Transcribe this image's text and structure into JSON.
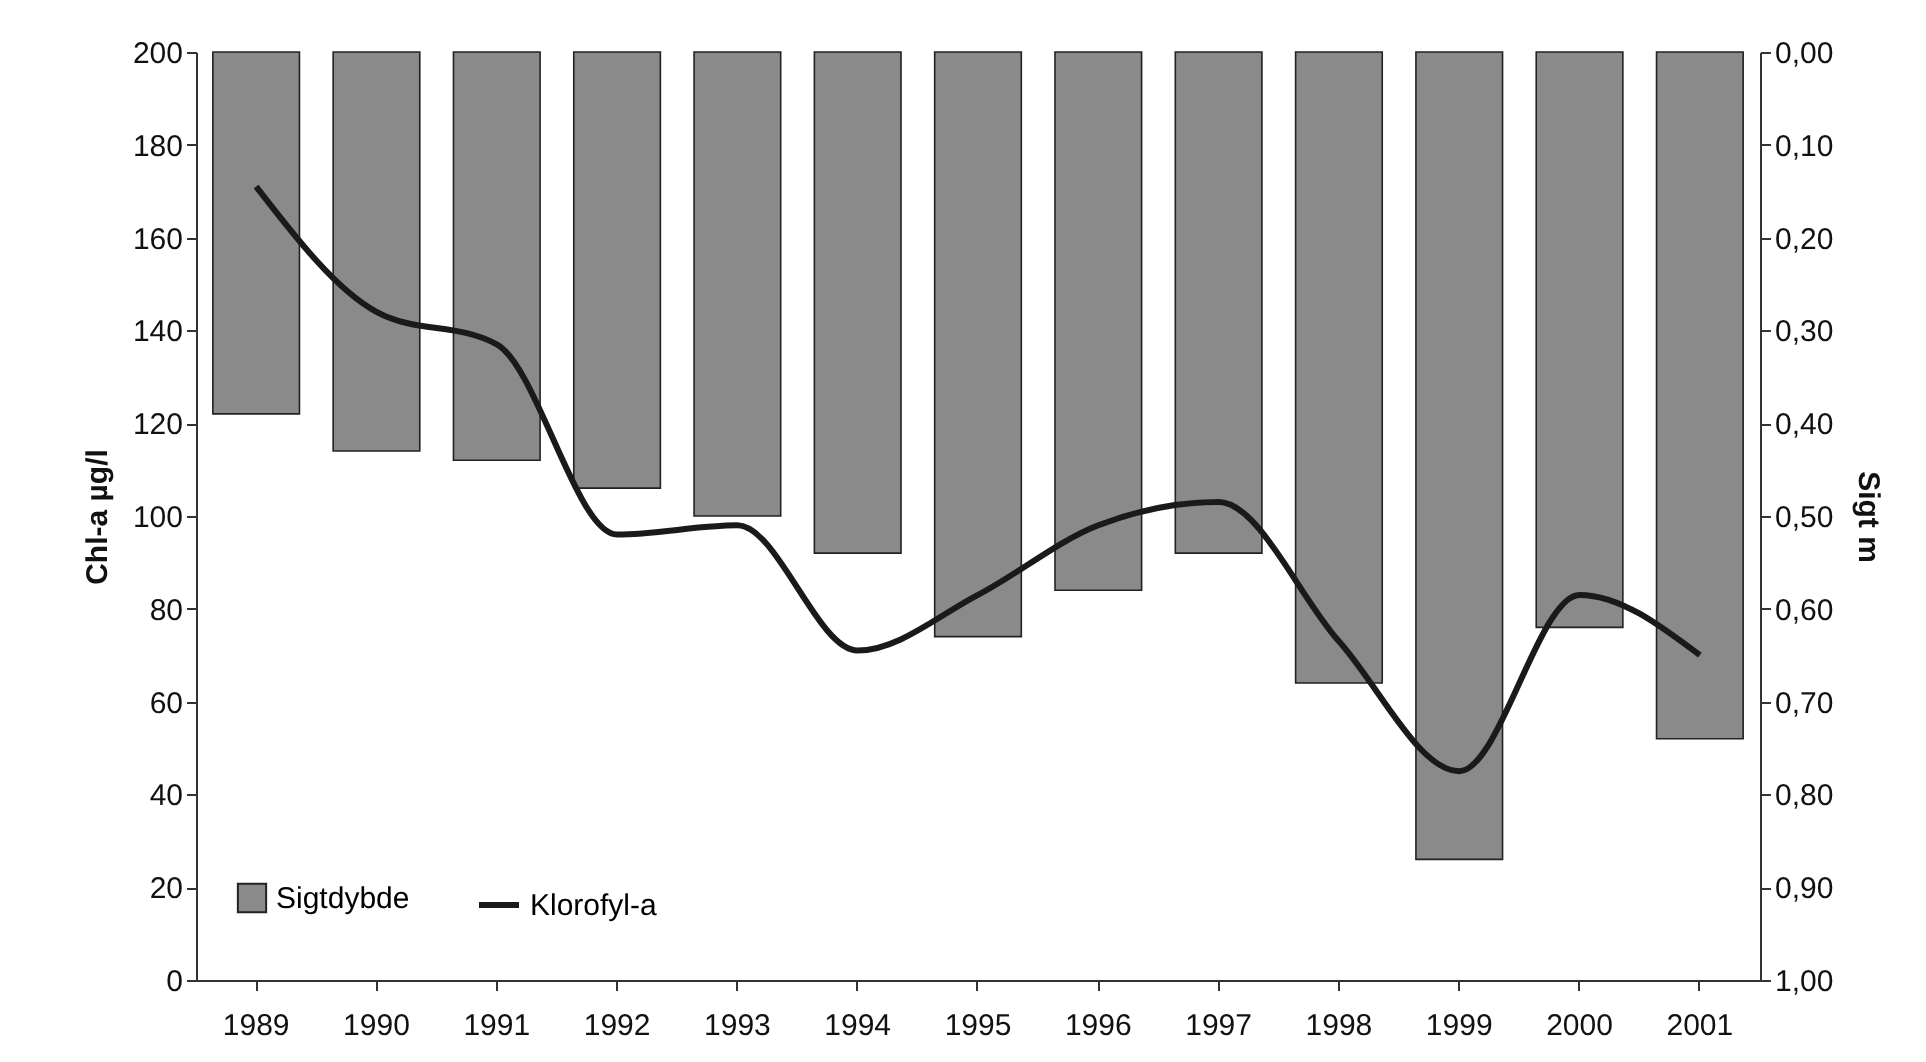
{
  "chart_data": {
    "type": "bar",
    "xlabel": null,
    "ylabel": "Chl-a µg/l",
    "y2label": "Sigt m",
    "categories": [
      "1989",
      "1990",
      "1991",
      "1992",
      "1993",
      "1994",
      "1995",
      "1996",
      "1997",
      "1998",
      "1999",
      "2000",
      "2001"
    ],
    "series": [
      {
        "name": "Sigtdybde",
        "axis": "y2",
        "color": "#8a8a8a",
        "values": [
          0.39,
          0.43,
          0.44,
          0.47,
          0.5,
          0.54,
          0.63,
          0.58,
          0.54,
          0.68,
          0.87,
          0.62,
          0.74
        ]
      },
      {
        "name": "Klorofyl-a",
        "type": "line",
        "color": "#1a1a1a",
        "values": [
          171,
          144,
          137,
          96,
          98,
          71,
          83,
          98,
          103,
          73,
          45,
          83,
          70
        ]
      }
    ],
    "ylim": [
      0,
      200
    ],
    "yticks": [
      0,
      20,
      40,
      60,
      80,
      100,
      120,
      140,
      160,
      180,
      200
    ],
    "y2lim": [
      1,
      0
    ],
    "y2ticks": [
      {
        "value": 0,
        "label": "0,00"
      },
      {
        "value": 0.1,
        "label": "0,10"
      },
      {
        "value": 0.2,
        "label": "0,20"
      },
      {
        "value": 0.3,
        "label": "0,30"
      },
      {
        "value": 0.4,
        "label": "0,40"
      },
      {
        "value": 0.5,
        "label": "0,50"
      },
      {
        "value": 0.6,
        "label": "0,60"
      },
      {
        "value": 0.7,
        "label": "0,70"
      },
      {
        "value": 0.8,
        "label": "0,80"
      },
      {
        "value": 0.9,
        "label": "0,90"
      },
      {
        "value": 1,
        "label": "1,00"
      }
    ],
    "grid": false,
    "legend": "bottom left",
    "line_style": "solid",
    "marker": "none"
  }
}
